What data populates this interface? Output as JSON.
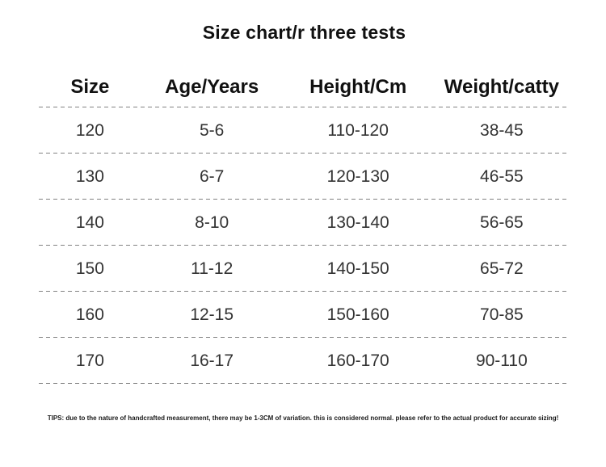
{
  "title": "Size chart/r three tests",
  "chart_data": {
    "type": "table",
    "title": "Size chart/r three tests",
    "columns": [
      "Size",
      "Age/Years",
      "Height/Cm",
      "Weight/catty"
    ],
    "rows": [
      [
        "120",
        "5-6",
        "110-120",
        "38-45"
      ],
      [
        "130",
        "6-7",
        "120-130",
        "46-55"
      ],
      [
        "140",
        "8-10",
        "130-140",
        "56-65"
      ],
      [
        "150",
        "11-12",
        "140-150",
        "65-72"
      ],
      [
        "160",
        "12-15",
        "150-160",
        "70-85"
      ],
      [
        "170",
        "16-17",
        "160-170",
        "90-110"
      ]
    ],
    "footnote": "TIPS: due to the nature of handcrafted measurement, there may be 1-3CM of variation. this is considered normal. please refer to the actual product for accurate sizing!"
  },
  "colors": {
    "background": "#ffffff",
    "heading_text": "#111111",
    "data_text": "#333333",
    "dashed_line": "#828282"
  }
}
